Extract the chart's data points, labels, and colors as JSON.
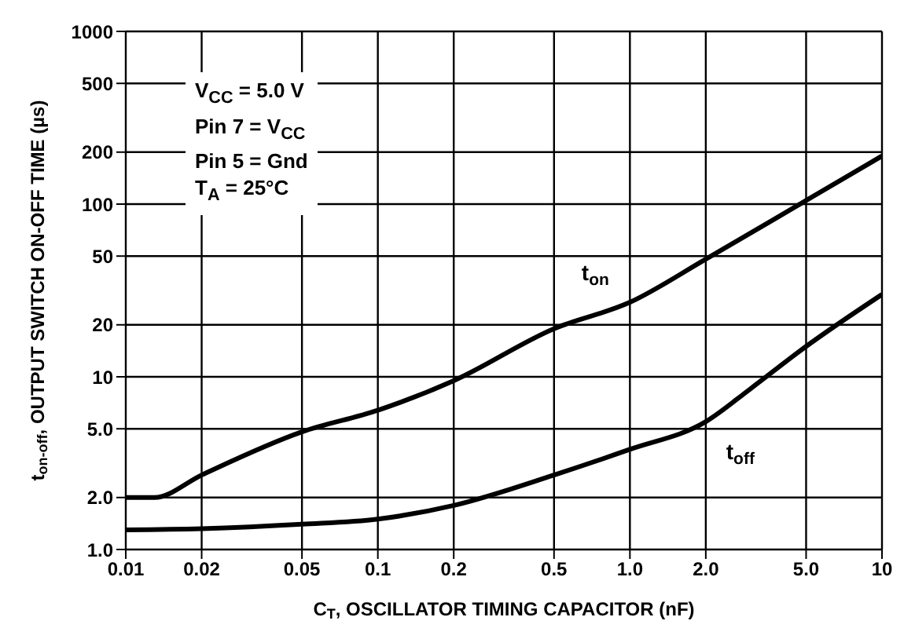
{
  "chart_data": {
    "type": "line",
    "xlabel": "C$_{T}$, OSCILLATOR TIMING CAPACITOR (nF)",
    "ylabel": "t$_{on-off}$, OUTPUT SWITCH ON-OFF TIME (µs)",
    "log": "xy",
    "grid": true,
    "marker": "none",
    "line_style": "solid",
    "xlim": [
      0.01,
      10
    ],
    "xticks": [
      0.01,
      0.02,
      0.05,
      0.1,
      0.2,
      0.5,
      {
        "value": 1,
        "label": "1.0"
      },
      {
        "value": 2,
        "label": "2.0"
      },
      {
        "value": 5,
        "label": "5.0"
      },
      10
    ],
    "ylim": [
      1,
      1000
    ],
    "yticks": [
      {
        "value": 1,
        "label": "1.0"
      },
      {
        "value": 2,
        "label": "2.0"
      },
      {
        "value": 5,
        "label": "5.0"
      },
      10,
      20,
      50,
      100,
      200,
      500,
      1000
    ],
    "series": [
      {
        "name": "t$_{on}$",
        "color": "#000000",
        "x": [
          0.01,
          0.013,
          0.02,
          0.05,
          0.1,
          0.2,
          0.5,
          1,
          2,
          5,
          10
        ],
        "values": [
          2.0,
          2.0,
          2.7,
          4.8,
          6.4,
          9.5,
          19,
          27,
          48,
          105,
          190
        ]
      },
      {
        "name": "t$_{off}$",
        "color": "#000000",
        "x": [
          0.01,
          0.02,
          0.05,
          0.1,
          0.2,
          0.5,
          1,
          2,
          3,
          5,
          10
        ],
        "values": [
          1.3,
          1.32,
          1.4,
          1.5,
          1.8,
          2.7,
          3.8,
          5.5,
          8.5,
          15,
          30
        ]
      }
    ],
    "annotations": [
      "V$_{CC}$ = 5.0 V",
      "Pin 7 = V$_{CC}$",
      "Pin 5 = Gnd",
      "T$_{A}$ = 25°C"
    ]
  }
}
